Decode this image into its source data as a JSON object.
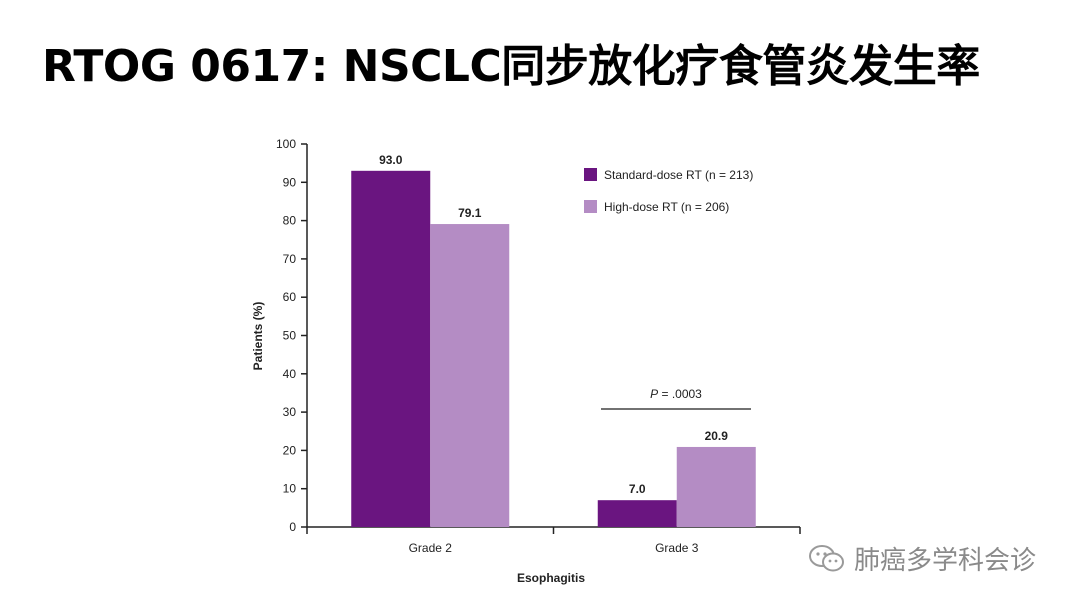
{
  "slide": {
    "title": "RTOG 0617: NSCLC同步放化疗食管炎发生率"
  },
  "watermark": {
    "text": "肺癌多学科会诊"
  },
  "chart_data": {
    "type": "bar",
    "title": "",
    "xlabel": "Esophagitis",
    "ylabel": "Patients (%)",
    "ylim": [
      0,
      100
    ],
    "yticks": [
      0,
      10,
      20,
      30,
      40,
      50,
      60,
      70,
      80,
      90,
      100
    ],
    "categories": [
      "Grade 2",
      "Grade 3"
    ],
    "series": [
      {
        "name": "Standard-dose RT (n = 213)",
        "values": [
          93.0,
          7.0
        ],
        "value_labels": [
          "93.0",
          "7.0"
        ],
        "color": "#6a1580"
      },
      {
        "name": "High-dose RT (n = 206)",
        "values": [
          79.1,
          20.9
        ],
        "value_labels": [
          "79.1",
          "20.9"
        ],
        "color": "#b48cc4"
      }
    ],
    "legend_position": "top-right",
    "grid": false,
    "annotations": [
      {
        "category": "Grade 3",
        "p_label": "P",
        "text": " = .0003"
      }
    ]
  },
  "colors": {
    "standard": "#6a1580",
    "high": "#b48cc4",
    "axis": "#222222"
  }
}
